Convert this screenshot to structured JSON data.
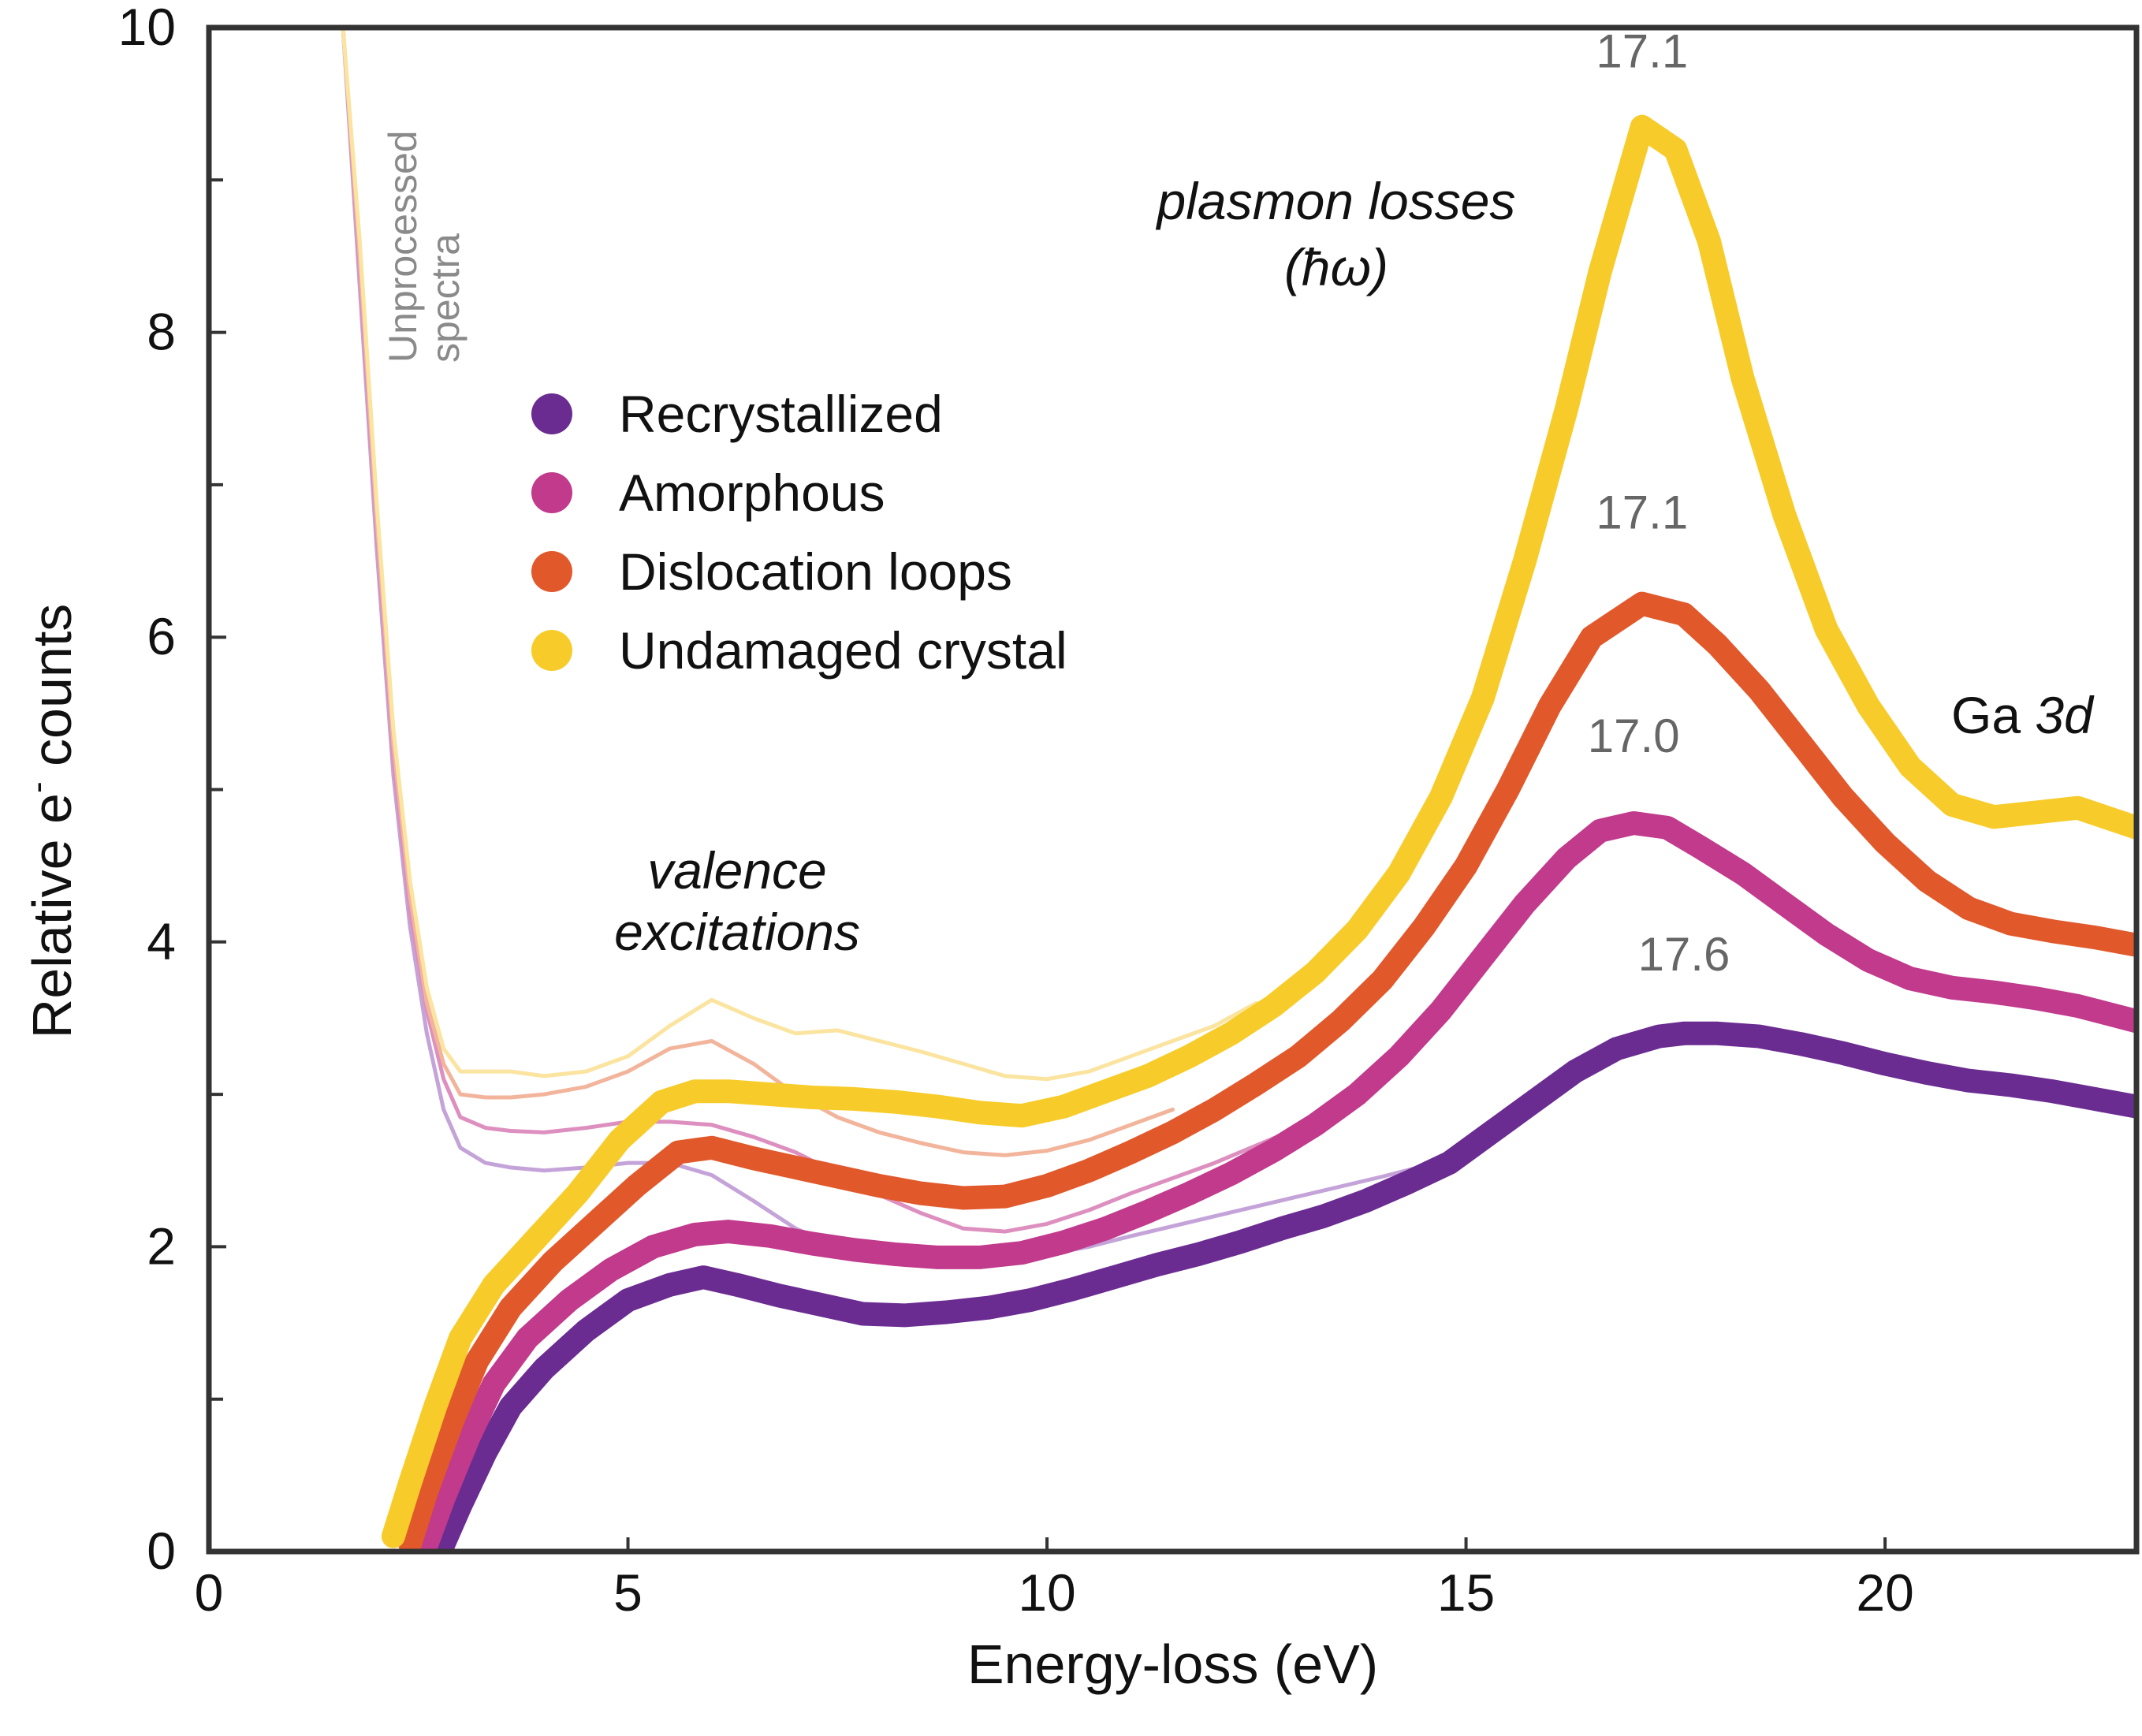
{
  "chart_data": {
    "type": "line",
    "xlabel": "Energy-loss (eV)",
    "ylabel_main": "Relative e",
    "ylabel_sup": "-",
    "ylabel_tail": " counts",
    "xlim": [
      0,
      23
    ],
    "ylim": [
      0,
      10
    ],
    "x_ticks": [
      0,
      5,
      10,
      15,
      20
    ],
    "x_tick_labels": [
      "0",
      "5",
      "10",
      "15",
      "20"
    ],
    "x_minor_ticks": [],
    "y_ticks": [
      0,
      2,
      4,
      6,
      8,
      10
    ],
    "y_tick_labels": [
      "0",
      "2",
      "4",
      "6",
      "8",
      "10"
    ],
    "y_minor_ticks": [
      1,
      3,
      5,
      7,
      9
    ],
    "legend_position": "upper-left",
    "series": [
      {
        "name": "Recrystallized",
        "color": "#6a2c91",
        "x": [
          2.8,
          3.0,
          3.3,
          3.6,
          4.0,
          4.5,
          5.0,
          5.5,
          5.9,
          6.3,
          6.8,
          7.3,
          7.8,
          8.3,
          8.8,
          9.3,
          9.8,
          10.3,
          10.8,
          11.3,
          11.8,
          12.3,
          12.8,
          13.3,
          13.8,
          14.3,
          14.8,
          15.3,
          15.8,
          16.3,
          16.8,
          17.3,
          17.6,
          18.0,
          18.5,
          19.0,
          19.5,
          20.0,
          20.5,
          21.0,
          21.5,
          22.0,
          22.5,
          23.0
        ],
        "y": [
          0.05,
          0.3,
          0.65,
          0.95,
          1.2,
          1.45,
          1.65,
          1.75,
          1.8,
          1.75,
          1.68,
          1.62,
          1.56,
          1.55,
          1.57,
          1.6,
          1.65,
          1.72,
          1.8,
          1.88,
          1.95,
          2.03,
          2.12,
          2.2,
          2.3,
          2.42,
          2.55,
          2.75,
          2.95,
          3.15,
          3.3,
          3.38,
          3.4,
          3.4,
          3.38,
          3.33,
          3.27,
          3.2,
          3.14,
          3.09,
          3.06,
          3.02,
          2.97,
          2.92
        ]
      },
      {
        "name": "Amorphous",
        "color": "#c13a8c",
        "x": [
          2.6,
          2.8,
          3.1,
          3.4,
          3.8,
          4.3,
          4.8,
          5.3,
          5.8,
          6.2,
          6.7,
          7.2,
          7.7,
          8.2,
          8.7,
          9.2,
          9.7,
          10.2,
          10.7,
          11.2,
          11.7,
          12.2,
          12.7,
          13.2,
          13.7,
          14.2,
          14.7,
          15.2,
          15.7,
          16.2,
          16.6,
          17.0,
          17.4,
          17.8,
          18.3,
          18.8,
          19.3,
          19.8,
          20.3,
          20.8,
          21.3,
          21.8,
          22.3,
          23.0
        ],
        "y": [
          0.05,
          0.35,
          0.75,
          1.1,
          1.4,
          1.65,
          1.85,
          2.0,
          2.08,
          2.1,
          2.07,
          2.02,
          1.98,
          1.95,
          1.93,
          1.93,
          1.96,
          2.03,
          2.12,
          2.23,
          2.35,
          2.48,
          2.63,
          2.8,
          3.0,
          3.25,
          3.55,
          3.9,
          4.25,
          4.55,
          4.73,
          4.78,
          4.75,
          4.62,
          4.45,
          4.25,
          4.05,
          3.88,
          3.76,
          3.7,
          3.67,
          3.63,
          3.58,
          3.48
        ]
      },
      {
        "name": "Dislocation loops",
        "color": "#e1582b",
        "x": [
          2.4,
          2.6,
          2.9,
          3.2,
          3.6,
          4.1,
          4.6,
          5.1,
          5.6,
          6.0,
          6.5,
          7.0,
          7.5,
          8.0,
          8.5,
          9.0,
          9.5,
          10.0,
          10.5,
          11.0,
          11.5,
          12.0,
          12.5,
          13.0,
          13.5,
          14.0,
          14.5,
          15.0,
          15.5,
          16.0,
          16.5,
          17.1,
          17.6,
          18.0,
          18.5,
          19.0,
          19.5,
          20.0,
          20.5,
          21.0,
          21.5,
          22.0,
          22.5,
          23.0
        ],
        "y": [
          0.05,
          0.4,
          0.85,
          1.25,
          1.6,
          1.9,
          2.15,
          2.4,
          2.62,
          2.65,
          2.58,
          2.52,
          2.46,
          2.4,
          2.35,
          2.32,
          2.33,
          2.4,
          2.5,
          2.62,
          2.75,
          2.9,
          3.07,
          3.25,
          3.48,
          3.75,
          4.1,
          4.5,
          5.0,
          5.55,
          6.0,
          6.22,
          6.15,
          5.95,
          5.65,
          5.3,
          4.95,
          4.65,
          4.4,
          4.22,
          4.12,
          4.07,
          4.03,
          3.98
        ]
      },
      {
        "name": "Undamaged crystal",
        "color": "#f7cc2a",
        "x": [
          2.2,
          2.4,
          2.7,
          3.0,
          3.4,
          3.9,
          4.4,
          4.9,
          5.4,
          5.8,
          6.2,
          6.7,
          7.2,
          7.7,
          8.2,
          8.7,
          9.2,
          9.7,
          10.2,
          10.7,
          11.2,
          11.7,
          12.2,
          12.7,
          13.2,
          13.7,
          14.2,
          14.7,
          15.2,
          15.7,
          16.2,
          16.6,
          17.1,
          17.5,
          17.9,
          18.3,
          18.8,
          19.3,
          19.8,
          20.3,
          20.8,
          21.3,
          21.8,
          22.3,
          23.0
        ],
        "y": [
          0.1,
          0.45,
          0.95,
          1.4,
          1.75,
          2.05,
          2.35,
          2.7,
          2.95,
          3.02,
          3.02,
          3.0,
          2.98,
          2.97,
          2.95,
          2.92,
          2.88,
          2.86,
          2.92,
          3.02,
          3.12,
          3.25,
          3.4,
          3.58,
          3.8,
          4.08,
          4.45,
          4.95,
          5.6,
          6.5,
          7.5,
          8.4,
          9.35,
          9.2,
          8.6,
          7.7,
          6.8,
          6.05,
          5.55,
          5.15,
          4.9,
          4.82,
          4.85,
          4.88,
          4.75
        ]
      }
    ],
    "unprocessed_series": [
      {
        "name": "Recrystallized (unprocessed)",
        "color": "#c4a3d9",
        "x": [
          1.6,
          1.8,
          2.0,
          2.2,
          2.4,
          2.6,
          2.8,
          3.0,
          3.3,
          3.6,
          4.0,
          4.5,
          5.0,
          5.5,
          6.0,
          6.5,
          7.0,
          7.5,
          8.0,
          8.5,
          9.0,
          9.5,
          10.0,
          10.5,
          11.0,
          12.0,
          13.0,
          14.0,
          15.0,
          16.0
        ],
        "y": [
          10.0,
          8.3,
          6.6,
          5.1,
          4.1,
          3.4,
          2.9,
          2.65,
          2.55,
          2.52,
          2.5,
          2.52,
          2.55,
          2.55,
          2.47,
          2.3,
          2.12,
          2.0,
          1.92,
          1.88,
          1.87,
          1.9,
          1.95,
          2.0,
          2.07,
          2.2,
          2.33,
          2.46,
          2.6,
          2.95
        ]
      },
      {
        "name": "Amorphous (unprocessed)",
        "color": "#dd8fbf",
        "x": [
          1.6,
          1.8,
          2.0,
          2.2,
          2.4,
          2.6,
          2.8,
          3.0,
          3.3,
          3.6,
          4.0,
          4.5,
          5.0,
          5.5,
          6.0,
          6.5,
          7.0,
          7.5,
          8.0,
          8.5,
          9.0,
          9.5,
          10.0,
          10.5,
          11.0,
          12.0,
          13.0
        ],
        "y": [
          10.0,
          8.4,
          6.7,
          5.2,
          4.2,
          3.55,
          3.1,
          2.85,
          2.78,
          2.76,
          2.75,
          2.78,
          2.82,
          2.82,
          2.8,
          2.72,
          2.62,
          2.48,
          2.34,
          2.22,
          2.12,
          2.1,
          2.15,
          2.24,
          2.35,
          2.55,
          2.78
        ]
      },
      {
        "name": "Dislocation loops (unprocessed)",
        "color": "#f2b49b",
        "x": [
          1.6,
          1.8,
          2.0,
          2.2,
          2.4,
          2.6,
          2.8,
          3.0,
          3.3,
          3.6,
          4.0,
          4.5,
          5.0,
          5.5,
          6.0,
          6.5,
          7.0,
          7.5,
          8.0,
          8.5,
          9.0,
          9.5,
          10.0,
          10.5,
          11.0,
          11.5
        ],
        "y": [
          10.0,
          8.5,
          6.8,
          5.3,
          4.3,
          3.6,
          3.2,
          3.0,
          2.98,
          2.98,
          3.0,
          3.05,
          3.15,
          3.3,
          3.35,
          3.2,
          3.0,
          2.85,
          2.75,
          2.68,
          2.62,
          2.6,
          2.63,
          2.7,
          2.8,
          2.9
        ]
      },
      {
        "name": "Undamaged crystal (unprocessed)",
        "color": "#fbe4a0",
        "x": [
          1.6,
          1.8,
          2.0,
          2.2,
          2.4,
          2.6,
          2.8,
          3.0,
          3.3,
          3.6,
          4.0,
          4.5,
          5.0,
          5.5,
          6.0,
          6.5,
          7.0,
          7.5,
          8.0,
          8.5,
          9.0,
          9.5,
          10.0,
          10.5,
          11.0,
          11.5,
          12.0,
          12.5
        ],
        "y": [
          10.0,
          8.6,
          6.9,
          5.4,
          4.4,
          3.7,
          3.3,
          3.15,
          3.15,
          3.15,
          3.12,
          3.15,
          3.25,
          3.45,
          3.62,
          3.5,
          3.4,
          3.42,
          3.35,
          3.28,
          3.2,
          3.12,
          3.1,
          3.15,
          3.25,
          3.35,
          3.45,
          3.6
        ]
      }
    ],
    "peak_labels": [
      {
        "text": "17.1",
        "x": 17.1,
        "y": 9.35
      },
      {
        "text": "17.1",
        "x": 17.1,
        "y": 6.22
      },
      {
        "text": "17.0",
        "x": 17.0,
        "y": 4.78
      },
      {
        "text": "17.6",
        "x": 17.6,
        "y": 3.4
      }
    ],
    "annotations": {
      "plasmon_line1": "plasmon losses",
      "plasmon_line2": "(ħω)",
      "valence_line1": "valence",
      "valence_line2": "excitations",
      "ga_prefix": "Ga ",
      "ga_italic": "3d",
      "unprocessed_line1": "Unprocessed",
      "unprocessed_line2": "spectra"
    }
  }
}
